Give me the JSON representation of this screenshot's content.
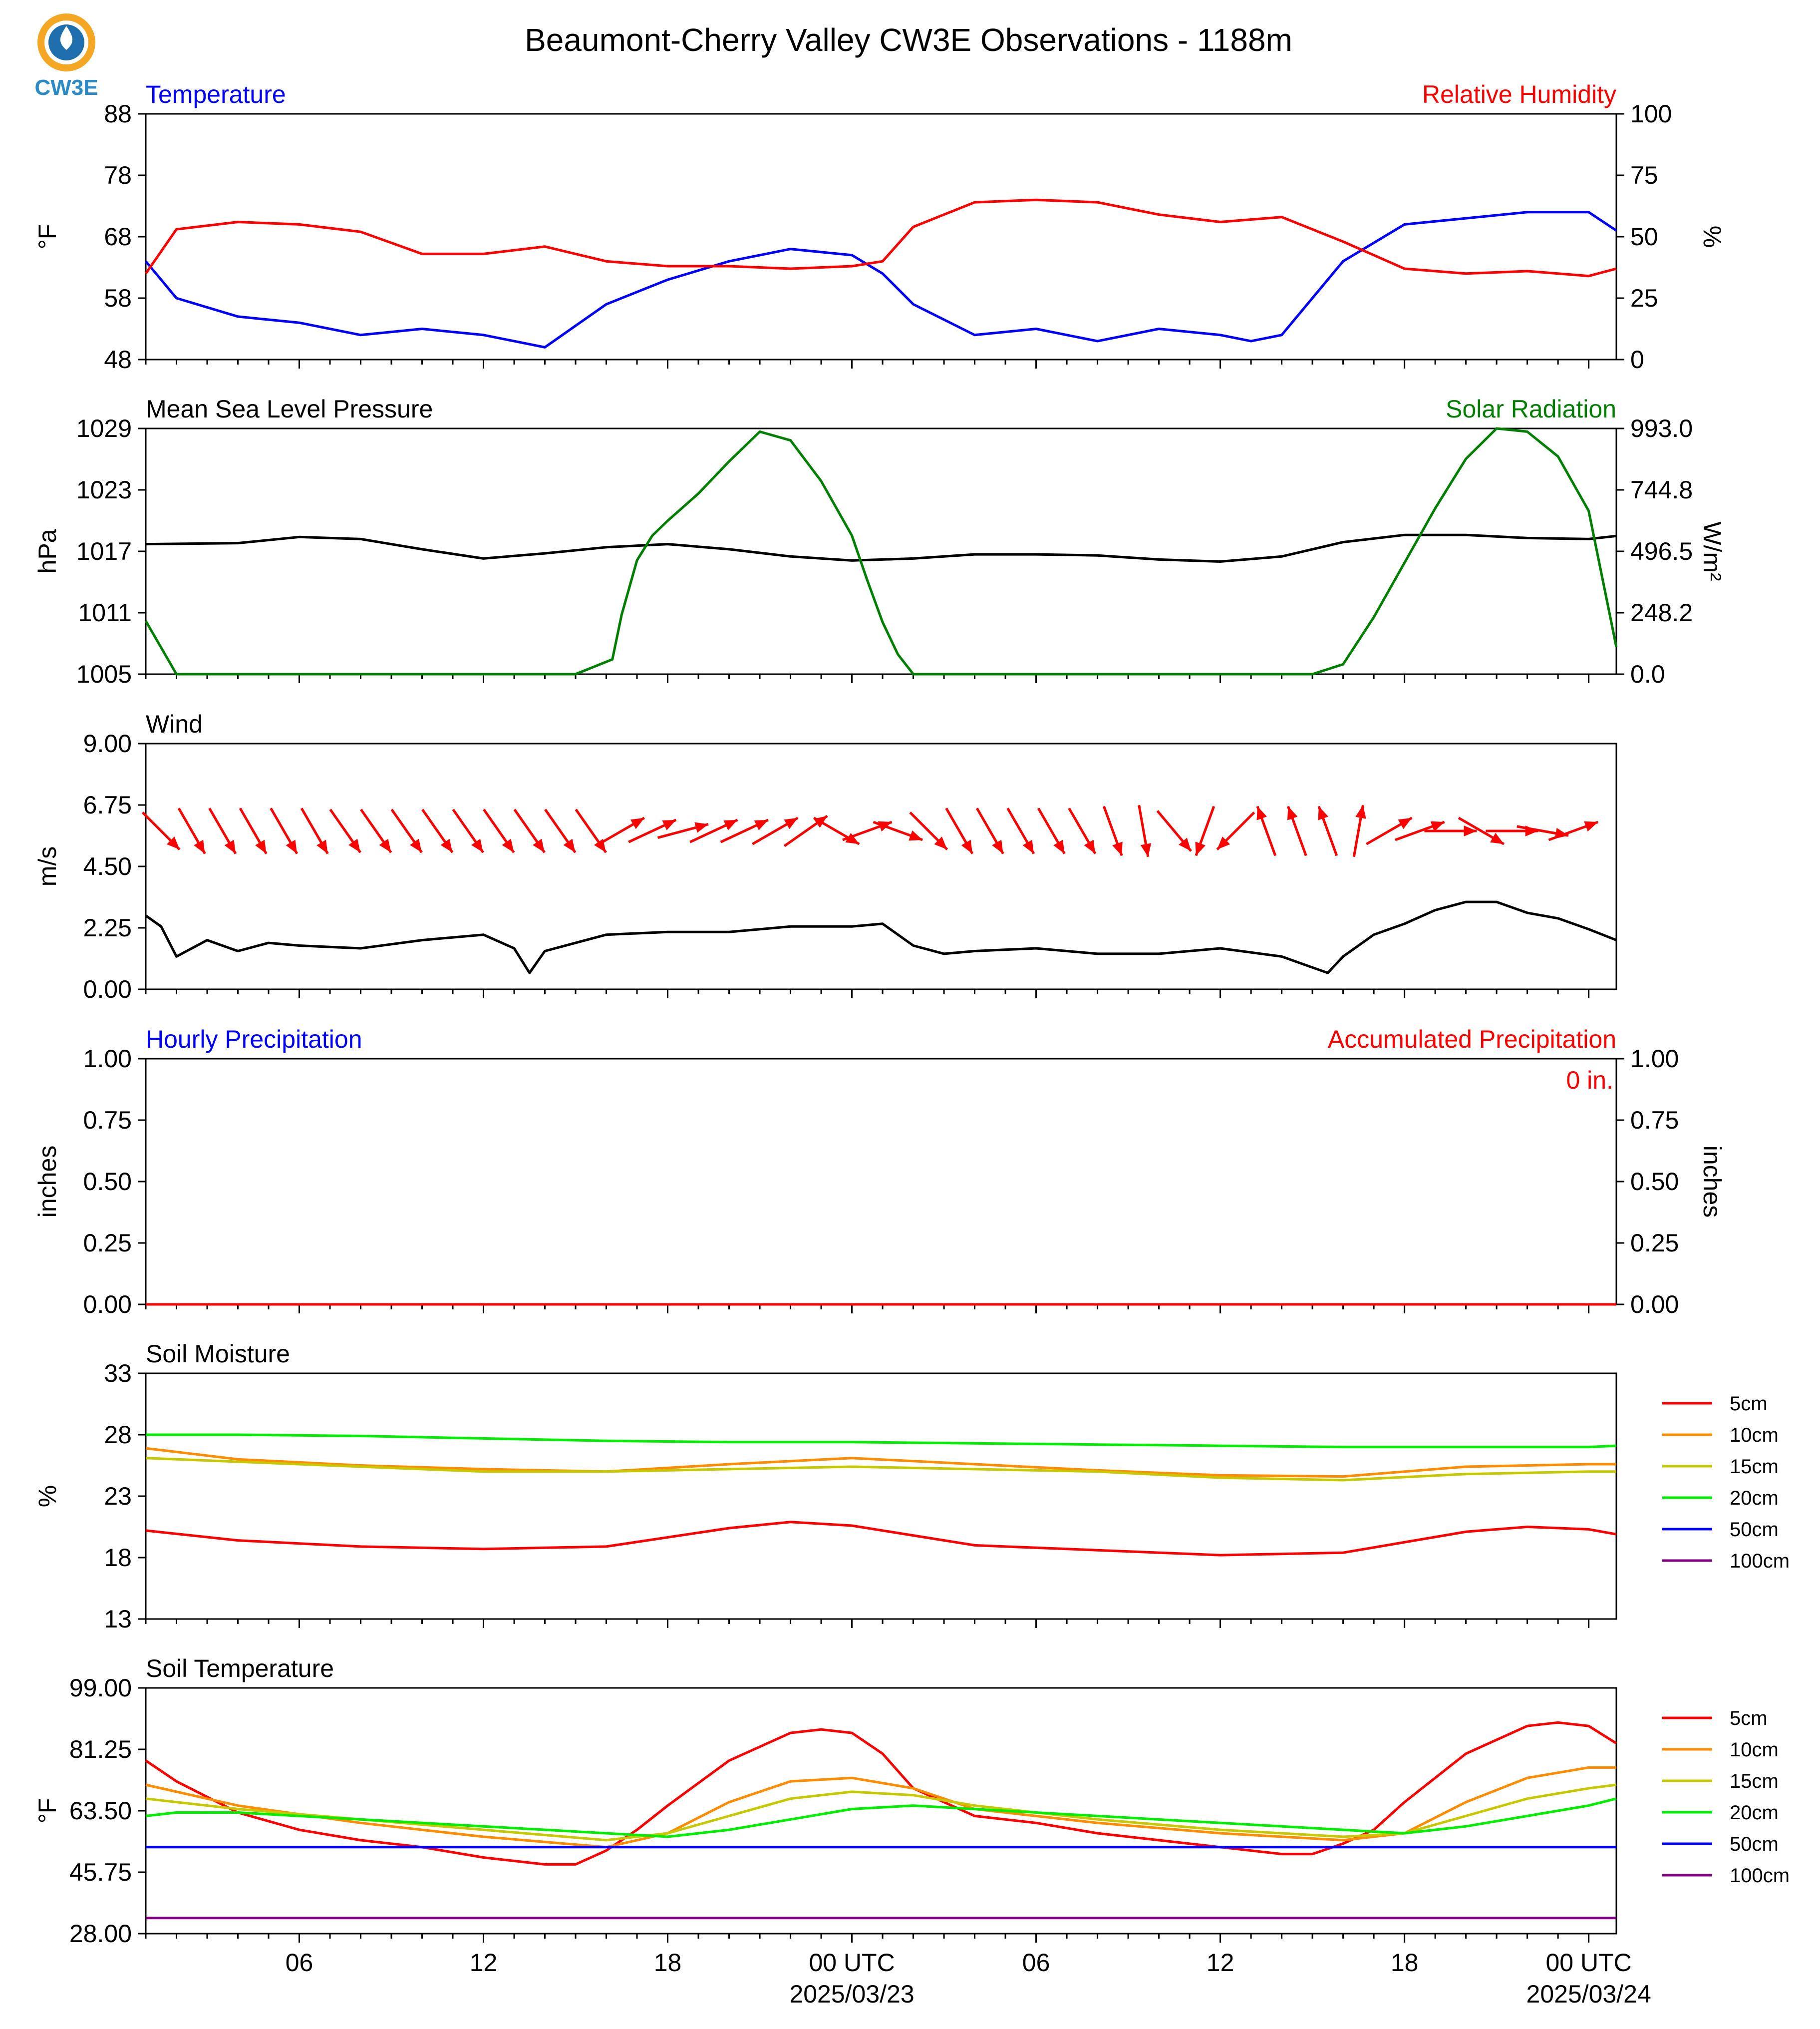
{
  "title": "Beaumont-Cherry Valley CW3E Observations - 1188m",
  "logo": {
    "text": "CW3E"
  },
  "x_axis": {
    "tick_labels": [
      "06",
      "12",
      "18",
      "00 UTC",
      "06",
      "12",
      "18",
      "00 UTC"
    ],
    "date_labels": [
      "2025/03/23",
      "2025/03/24"
    ],
    "range_hours_from_2025-03-22T00": [
      1,
      48.9
    ],
    "major_ticks_hours": [
      6,
      12,
      18,
      24,
      30,
      36,
      42,
      48
    ]
  },
  "colors": {
    "red": "#ff0000",
    "blue": "#0000ff",
    "green": "#008000",
    "black": "#000000",
    "lime": "#00ee00",
    "orange": "#ff8c00",
    "olive": "#c8c800",
    "purple": "#800080"
  },
  "chart_data": [
    {
      "type": "line",
      "title_left": "Temperature",
      "title_right": "Relative Humidity",
      "ylabel_left": "°F",
      "ylabel_right": "%",
      "ylim_left": [
        48,
        88
      ],
      "yticks_left": [
        "48",
        "58",
        "68",
        "78",
        "88"
      ],
      "ylim_right": [
        0,
        100
      ],
      "yticks_right": [
        "0",
        "25",
        "50",
        "75",
        "100"
      ],
      "series": [
        {
          "axis": "left",
          "color": "#0000ff",
          "x": [
            1,
            2,
            4,
            6,
            8,
            10,
            12,
            13,
            14,
            16,
            18,
            20,
            22,
            24,
            25,
            26,
            28,
            30,
            32,
            34,
            36,
            37,
            38,
            40,
            42,
            44,
            46,
            48,
            48.9
          ],
          "y": [
            64,
            58,
            55,
            54,
            52,
            53,
            52,
            51,
            50,
            57,
            61,
            64,
            66,
            65,
            62,
            57,
            52,
            53,
            51,
            53,
            52,
            51,
            52,
            64,
            70,
            71,
            72,
            72,
            69
          ]
        },
        {
          "axis": "right",
          "color": "#ff0000",
          "x": [
            1,
            2,
            4,
            6,
            8,
            10,
            12,
            14,
            16,
            18,
            20,
            22,
            24,
            25,
            26,
            28,
            30,
            32,
            34,
            36,
            38,
            40,
            42,
            44,
            46,
            48,
            48.9
          ],
          "y": [
            35,
            53,
            56,
            55,
            52,
            43,
            43,
            46,
            40,
            38,
            38,
            37,
            38,
            40,
            54,
            64,
            65,
            64,
            59,
            56,
            58,
            48,
            37,
            35,
            36,
            34,
            37
          ]
        }
      ]
    },
    {
      "type": "line",
      "title_left": "Mean Sea Level Pressure",
      "title_right": "Solar Radiation",
      "ylabel_left": "hPa",
      "ylabel_right": "W/m²",
      "ylim_left": [
        1005,
        1029
      ],
      "yticks_left": [
        "1005",
        "1011",
        "1017",
        "1023",
        "1029"
      ],
      "ylim_right": [
        0,
        993
      ],
      "yticks_right": [
        "0.0",
        "248.2",
        "496.5",
        "744.8",
        "993.0"
      ],
      "series": [
        {
          "axis": "left",
          "color": "#000000",
          "x": [
            1,
            4,
            6,
            8,
            10,
            12,
            14,
            16,
            18,
            20,
            22,
            24,
            26,
            28,
            30,
            32,
            34,
            36,
            38,
            40,
            42,
            44,
            46,
            48,
            48.9
          ],
          "y": [
            1017.7,
            1017.8,
            1018.4,
            1018.2,
            1017.2,
            1016.3,
            1016.8,
            1017.4,
            1017.7,
            1017.2,
            1016.5,
            1016.1,
            1016.3,
            1016.7,
            1016.7,
            1016.6,
            1016.2,
            1016.0,
            1016.5,
            1017.9,
            1018.6,
            1018.6,
            1018.3,
            1018.2,
            1018.5
          ]
        },
        {
          "axis": "right",
          "color": "#008000",
          "x": [
            1,
            2,
            15,
            16.2,
            16.5,
            17,
            17.5,
            18,
            19,
            20,
            21,
            22,
            23,
            24,
            24.5,
            25,
            25.5,
            26,
            39,
            40,
            41,
            42,
            43,
            44,
            45,
            46,
            47,
            48,
            48.9
          ],
          "y": [
            215,
            0,
            0,
            60,
            240,
            460,
            560,
            620,
            730,
            860,
            980,
            945,
            780,
            560,
            380,
            210,
            80,
            0,
            0,
            40,
            230,
            450,
            670,
            870,
            993,
            980,
            880,
            660,
            110
          ]
        }
      ]
    },
    {
      "type": "line",
      "title_left": "Wind",
      "ylabel_left": "m/s",
      "ylim_left": [
        0,
        9
      ],
      "yticks_left": [
        "0.00",
        "2.25",
        "4.50",
        "6.75",
        "9.00"
      ],
      "series": [
        {
          "axis": "left",
          "color": "#000000",
          "x": [
            1,
            1.5,
            2,
            3,
            4,
            5,
            6,
            8,
            10,
            12,
            13,
            13.5,
            14,
            15,
            16,
            18,
            20,
            22,
            24,
            25,
            26,
            27,
            28,
            30,
            32,
            34,
            36,
            38,
            39,
            39.5,
            40,
            41,
            42,
            43,
            44,
            45,
            46,
            47,
            48,
            48.9
          ],
          "y": [
            2.7,
            2.3,
            1.2,
            1.8,
            1.4,
            1.7,
            1.6,
            1.5,
            1.8,
            2.0,
            1.5,
            0.6,
            1.4,
            1.7,
            2.0,
            2.1,
            2.1,
            2.3,
            2.3,
            2.4,
            1.6,
            1.3,
            1.4,
            1.5,
            1.3,
            1.3,
            1.5,
            1.2,
            0.8,
            0.6,
            1.2,
            2.0,
            2.4,
            2.9,
            3.2,
            3.2,
            2.8,
            2.6,
            2.2,
            1.8
          ]
        }
      ],
      "wind_arrows_to_deg": [
        135,
        150,
        150,
        150,
        150,
        150,
        145,
        145,
        145,
        145,
        145,
        145,
        145,
        145,
        145,
        60,
        65,
        75,
        65,
        65,
        60,
        55,
        120,
        70,
        110,
        135,
        150,
        150,
        150,
        150,
        150,
        160,
        170,
        140,
        200,
        225,
        340,
        340,
        340,
        10,
        60,
        70,
        90,
        120,
        90,
        100,
        70
      ],
      "wind_arrows_x": [
        1.5,
        2.5,
        3.5,
        4.5,
        5.5,
        6.5,
        7.5,
        8.5,
        9.5,
        10.5,
        11.5,
        12.5,
        13.5,
        14.5,
        15.5,
        16.5,
        17.5,
        18.5,
        19.5,
        20.5,
        21.5,
        22.5,
        23.5,
        24.5,
        25.5,
        26.5,
        27.5,
        28.5,
        29.5,
        30.5,
        31.5,
        32.5,
        33.5,
        34.5,
        35.5,
        36.5,
        37.5,
        38.5,
        39.5,
        40.5,
        41.5,
        42.5,
        43.5,
        44.5,
        45.5,
        46.5,
        47.5
      ]
    },
    {
      "type": "line",
      "title_left": "Hourly Precipitation",
      "title_right": "Accumulated Precipitation",
      "ylabel_left": "inches",
      "ylabel_right": "inches",
      "annotation": "0 in.",
      "ylim_left": [
        0,
        1
      ],
      "yticks_left": [
        "0.00",
        "0.25",
        "0.50",
        "0.75",
        "1.00"
      ],
      "ylim_right": [
        0,
        1
      ],
      "yticks_right": [
        "0.00",
        "0.25",
        "0.50",
        "0.75",
        "1.00"
      ],
      "series": [
        {
          "axis": "left",
          "color": "#ff0000",
          "x": [
            1,
            48.9
          ],
          "y": [
            0,
            0
          ]
        }
      ]
    },
    {
      "type": "line",
      "title_left": "Soil Moisture",
      "ylabel_left": "%",
      "ylim_left": [
        13,
        33
      ],
      "yticks_left": [
        "13",
        "18",
        "23",
        "28",
        "33"
      ],
      "legend": [
        "5cm",
        "10cm",
        "15cm",
        "20cm",
        "50cm",
        "100cm"
      ],
      "legend_colors": [
        "#ff0000",
        "#ff8c00",
        "#c8c800",
        "#00ee00",
        "#0000ff",
        "#800080"
      ],
      "series": [
        {
          "name": "5cm",
          "color": "#ff0000",
          "x": [
            1,
            4,
            8,
            12,
            16,
            20,
            22,
            24,
            28,
            32,
            36,
            40,
            44,
            46,
            48,
            48.9
          ],
          "y": [
            20.2,
            19.4,
            18.9,
            18.7,
            18.9,
            20.4,
            20.9,
            20.6,
            19.0,
            18.6,
            18.2,
            18.4,
            20.1,
            20.5,
            20.3,
            19.9
          ]
        },
        {
          "name": "10cm",
          "color": "#ff8c00",
          "x": [
            1,
            4,
            8,
            12,
            16,
            20,
            24,
            28,
            32,
            36,
            40,
            44,
            48,
            48.9
          ],
          "y": [
            26.9,
            26.0,
            25.5,
            25.2,
            25.0,
            25.6,
            26.1,
            25.6,
            25.1,
            24.7,
            24.6,
            25.4,
            25.6,
            25.6
          ]
        },
        {
          "name": "15cm",
          "color": "#c8c800",
          "x": [
            1,
            4,
            8,
            12,
            16,
            20,
            24,
            28,
            32,
            36,
            40,
            44,
            48,
            48.9
          ],
          "y": [
            26.1,
            25.8,
            25.4,
            25.0,
            25.0,
            25.2,
            25.4,
            25.2,
            25.0,
            24.5,
            24.3,
            24.8,
            25.0,
            25.0
          ]
        },
        {
          "name": "20cm",
          "color": "#00ee00",
          "x": [
            1,
            4,
            8,
            12,
            16,
            20,
            24,
            28,
            32,
            36,
            40,
            44,
            48,
            48.9
          ],
          "y": [
            28.0,
            28.0,
            27.9,
            27.7,
            27.5,
            27.4,
            27.4,
            27.3,
            27.2,
            27.1,
            27.0,
            27.0,
            27.0,
            27.1
          ]
        }
      ]
    },
    {
      "type": "line",
      "title_left": "Soil Temperature",
      "ylabel_left": "°F",
      "ylim_left": [
        28,
        99
      ],
      "yticks_left": [
        "28.00",
        "45.75",
        "63.50",
        "81.25",
        "99.00"
      ],
      "legend": [
        "5cm",
        "10cm",
        "15cm",
        "20cm",
        "50cm",
        "100cm"
      ],
      "legend_colors": [
        "#ff0000",
        "#ff8c00",
        "#c8c800",
        "#00ee00",
        "#0000ff",
        "#800080"
      ],
      "series": [
        {
          "name": "5cm",
          "color": "#ff0000",
          "x": [
            1,
            2,
            4,
            6,
            8,
            10,
            12,
            14,
            15,
            16,
            17,
            18,
            20,
            22,
            23,
            24,
            25,
            26,
            28,
            30,
            32,
            34,
            36,
            38,
            39,
            40,
            41,
            42,
            44,
            46,
            47,
            48,
            48.9
          ],
          "y": [
            78,
            72,
            63,
            58,
            55,
            53,
            50,
            48,
            48,
            52,
            58,
            65,
            78,
            86,
            87,
            86,
            80,
            70,
            62,
            60,
            57,
            55,
            53,
            51,
            51,
            54,
            58,
            66,
            80,
            88,
            89,
            88,
            83
          ]
        },
        {
          "name": "10cm",
          "color": "#ff8c00",
          "x": [
            1,
            4,
            8,
            12,
            16,
            18,
            20,
            22,
            24,
            26,
            28,
            32,
            36,
            40,
            42,
            44,
            46,
            48,
            48.9
          ],
          "y": [
            71,
            65,
            60,
            56,
            53,
            57,
            66,
            72,
            73,
            70,
            64,
            60,
            57,
            55,
            57,
            66,
            73,
            76,
            76
          ]
        },
        {
          "name": "15cm",
          "color": "#c8c800",
          "x": [
            1,
            4,
            8,
            12,
            16,
            18,
            20,
            22,
            24,
            26,
            28,
            32,
            36,
            40,
            42,
            44,
            46,
            48,
            48.9
          ],
          "y": [
            67,
            64,
            61,
            58,
            55,
            57,
            62,
            67,
            69,
            68,
            65,
            61,
            58,
            56,
            57,
            62,
            67,
            70,
            71
          ]
        },
        {
          "name": "20cm",
          "color": "#00ee00",
          "x": [
            1,
            2,
            4,
            8,
            12,
            16,
            18,
            20,
            22,
            24,
            26,
            28,
            32,
            36,
            40,
            42,
            44,
            46,
            48,
            48.9
          ],
          "y": [
            62,
            63,
            63,
            61,
            59,
            57,
            56,
            58,
            61,
            64,
            65,
            64,
            62,
            60,
            58,
            57,
            59,
            62,
            65,
            67
          ]
        },
        {
          "name": "50cm",
          "color": "#0000ff",
          "x": [
            1,
            48.9
          ],
          "y": [
            53,
            53
          ]
        },
        {
          "name": "100cm",
          "color": "#800080",
          "x": [
            1,
            48.9
          ],
          "y": [
            32.5,
            32.5
          ]
        }
      ]
    }
  ]
}
